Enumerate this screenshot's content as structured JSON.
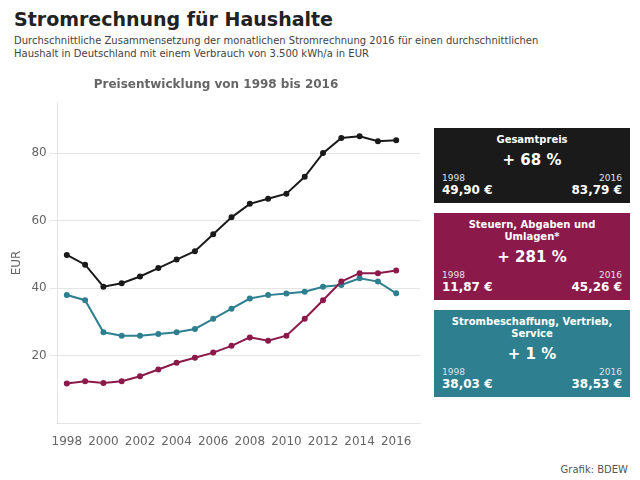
{
  "chart_data": {
    "type": "line",
    "title": "Stromrechnung für Haushalte",
    "subtitle": [
      "Durchschnittliche Zusammensetzung der monatlichen Stromrechnung 2016 für einen durchschnittlichen",
      "Haushalt in Deutschland mit einem Verbrauch von 3.500 kWh/a in EUR"
    ],
    "plot_title": "Preisentwicklung von 1998 bis 2016",
    "y_label": "EUR",
    "source": "Grafik: BDEW",
    "x": [
      1998,
      1999,
      2000,
      2001,
      2002,
      2003,
      2004,
      2005,
      2006,
      2007,
      2008,
      2009,
      2010,
      2011,
      2012,
      2013,
      2014,
      2015,
      2016
    ],
    "xlim": [
      1997.5,
      2017.3
    ],
    "xticks": [
      1998,
      2000,
      2002,
      2004,
      2006,
      2008,
      2010,
      2012,
      2014,
      2016
    ],
    "ylim": [
      0,
      95
    ],
    "yticks": [
      20,
      40,
      60,
      80
    ],
    "grid": true,
    "series": [
      {
        "name": "Gesamtpreis",
        "color": "#1a1a1a",
        "values": [
          49.9,
          47.0,
          40.5,
          41.5,
          43.5,
          46.0,
          48.5,
          51.0,
          56.0,
          61.0,
          65.0,
          66.5,
          68.0,
          73.0,
          80.0,
          84.5,
          85.0,
          83.5,
          83.79
        ],
        "change": "+ 68 %",
        "first": {
          "label": "1998",
          "value": "49,90 €"
        },
        "last": {
          "label": "2016",
          "value": "83,79 €"
        }
      },
      {
        "name": "Steuern, Abgaben und Umlagen*",
        "color": "#8b1a4a",
        "values": [
          11.87,
          12.5,
          12.0,
          12.5,
          14.0,
          16.0,
          18.0,
          19.5,
          21.0,
          23.0,
          25.5,
          24.5,
          26.0,
          31.0,
          36.5,
          42.0,
          44.5,
          44.5,
          45.26
        ],
        "change": "+ 281 %",
        "first": {
          "label": "1998",
          "value": "11,87 €"
        },
        "last": {
          "label": "2016",
          "value": "45,26 €"
        }
      },
      {
        "name": "Strombeschaffung, Vertrieb, Service",
        "color": "#2e7f8f",
        "values": [
          38.03,
          36.5,
          27.0,
          26.0,
          26.0,
          26.5,
          27.0,
          28.0,
          31.0,
          34.0,
          37.0,
          38.0,
          38.5,
          39.0,
          40.5,
          41.0,
          43.0,
          42.0,
          38.53
        ],
        "change": "+ 1 %",
        "first": {
          "label": "1998",
          "value": "38,03 €"
        },
        "last": {
          "label": "2016",
          "value": "38,53 €"
        }
      }
    ]
  }
}
